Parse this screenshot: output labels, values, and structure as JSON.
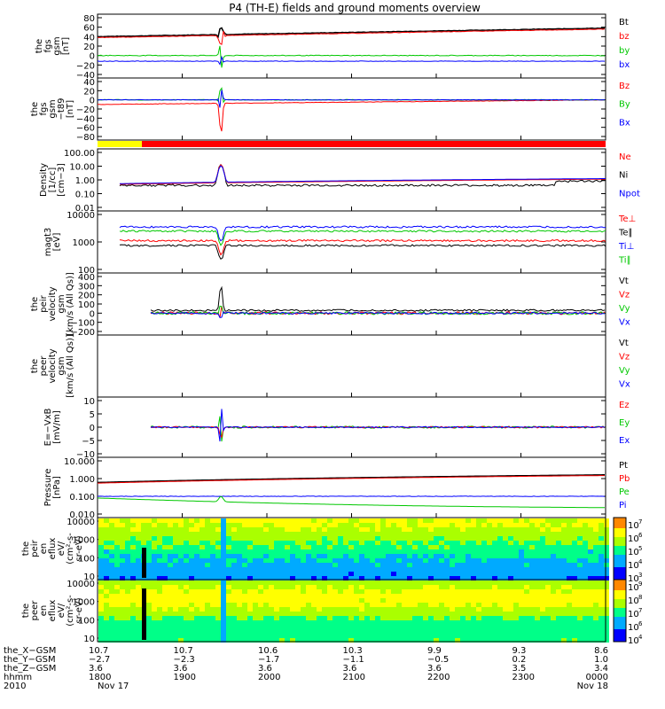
{
  "title": "P4 (TH-E) fields and ground moments overview",
  "colors": {
    "black": "#000000",
    "red": "#ff0000",
    "green": "#00c800",
    "blue": "#0000ff",
    "yellow": "#ffff00",
    "orange": "#ff6600"
  },
  "panels": [
    {
      "ylabel": [
        "the",
        "fgs",
        "gsm",
        "[nT]"
      ],
      "yticks": [
        "80",
        "60",
        "40",
        "20",
        "0",
        "−20",
        "−40"
      ],
      "legend": [
        {
          "t": "Bt",
          "c": "black"
        },
        {
          "t": "bz",
          "c": "red"
        },
        {
          "t": "by",
          "c": "green"
        },
        {
          "t": "bx",
          "c": "blue"
        }
      ]
    },
    {
      "ylabel": [
        "the",
        "fgs",
        "gsm",
        "−t89",
        "[nT]"
      ],
      "yticks": [
        "40",
        "20",
        "0",
        "−20",
        "−40",
        "−60",
        "−80"
      ],
      "legend": [
        {
          "t": "Bz",
          "c": "red"
        },
        {
          "t": "By",
          "c": "green"
        },
        {
          "t": "Bx",
          "c": "blue"
        }
      ]
    },
    {
      "ylabel": [
        "Density",
        "[1/cc]",
        "[cm−3]"
      ],
      "yticks": [
        "100.00",
        "10.00",
        "1.00",
        "0.10",
        "0.01"
      ],
      "legend": [
        {
          "t": "Ne",
          "c": "red"
        },
        {
          "t": "Ni",
          "c": "black"
        },
        {
          "t": "Npot",
          "c": "blue"
        }
      ]
    },
    {
      "ylabel": [
        "magt3",
        "[eV]"
      ],
      "yticks": [
        "10000",
        "1000",
        "100"
      ],
      "legend": [
        {
          "t": "Te⊥",
          "c": "red"
        },
        {
          "t": "Te∥",
          "c": "black"
        },
        {
          "t": "Ti⊥",
          "c": "blue"
        },
        {
          "t": "Ti∥",
          "c": "green"
        }
      ]
    },
    {
      "ylabel": [
        "the",
        "peir",
        "velocity",
        "gsm",
        "[km/s (All Qs)]"
      ],
      "yticks": [
        "400",
        "300",
        "200",
        "100",
        "0",
        "−100",
        "−200"
      ],
      "legend": [
        {
          "t": "Vt",
          "c": "black"
        },
        {
          "t": "Vz",
          "c": "red"
        },
        {
          "t": "Vy",
          "c": "green"
        },
        {
          "t": "Vx",
          "c": "blue"
        }
      ]
    },
    {
      "ylabel": [
        "the",
        "peer",
        "velocity",
        "gsm",
        "[km/s (All Qs)]"
      ],
      "yticks": [],
      "legend": [
        {
          "t": "Vt",
          "c": "black"
        },
        {
          "t": "Vz",
          "c": "red"
        },
        {
          "t": "Vy",
          "c": "green"
        },
        {
          "t": "Vx",
          "c": "blue"
        }
      ]
    },
    {
      "ylabel": [
        "E=−VxB",
        "[mV/m]"
      ],
      "yticks": [
        "10",
        "5",
        "0",
        "−5",
        "−10"
      ],
      "legend": [
        {
          "t": "Ez",
          "c": "red"
        },
        {
          "t": "Ey",
          "c": "green"
        },
        {
          "t": "Ex",
          "c": "blue"
        }
      ]
    },
    {
      "ylabel": [
        "Pressure",
        "[nPa]"
      ],
      "yticks": [
        "10.000",
        "1.000",
        "0.100",
        "0.010"
      ],
      "legend": [
        {
          "t": "Pt",
          "c": "black"
        },
        {
          "t": "Pb",
          "c": "red"
        },
        {
          "t": "Pe",
          "c": "green"
        },
        {
          "t": "Pi",
          "c": "blue"
        }
      ]
    },
    {
      "ylabel": [
        "the",
        "peir",
        "en",
        "eflux",
        "eV/",
        "(cm²-s-",
        "sr-eV)"
      ],
      "yticks": [
        "10000",
        "1000",
        "100",
        "10"
      ],
      "cbar": [
        "10",
        "10",
        "10",
        "10",
        "10"
      ],
      "cbar_exp": [
        "7",
        "6",
        "5",
        "4",
        "3"
      ]
    },
    {
      "ylabel": [
        "the",
        "peer",
        "en",
        "eflux",
        "eV/",
        "(cm²-s-",
        "sr-eV)"
      ],
      "yticks": [
        "10000",
        "1000",
        "100",
        "10"
      ],
      "cbar": [
        "10",
        "10",
        "10",
        "10",
        "10"
      ],
      "cbar_exp": [
        "9",
        "8",
        "7",
        "6",
        "4"
      ]
    }
  ],
  "xaxis": {
    "row_labels": [
      "the_X−GSM",
      "the_Y−GSM",
      "the_Z−GSM",
      "hhmm",
      "2010"
    ],
    "cols": [
      [
        "10.7",
        "−2.7",
        "3.6",
        "1800",
        "Nov 17"
      ],
      [
        "10.7",
        "−2.3",
        "3.6",
        "1900",
        ""
      ],
      [
        "10.6",
        "−1.7",
        "3.6",
        "2000",
        ""
      ],
      [
        "10.3",
        "−1.1",
        "3.6",
        "2100",
        ""
      ],
      [
        "9.9",
        "−0.5",
        "3.6",
        "2200",
        ""
      ],
      [
        "9.3",
        "0.2",
        "3.5",
        "2300",
        ""
      ],
      [
        "8.6",
        "1.0",
        "3.4",
        "0000",
        "Nov 18"
      ]
    ]
  },
  "chart_data": {
    "type": "line",
    "title": "P4 (TH-E) fields and ground moments overview",
    "x": [
      "1800",
      "1900",
      "2000",
      "2100",
      "2200",
      "2300",
      "0000"
    ],
    "series": [
      {
        "name": "Bt",
        "values": [
          40,
          40,
          42,
          43,
          45,
          48,
          60
        ]
      },
      {
        "name": "bz",
        "values": [
          38,
          38,
          40,
          41,
          43,
          46,
          58
        ]
      },
      {
        "name": "by",
        "values": [
          0,
          0,
          0,
          0,
          0,
          0,
          0
        ]
      },
      {
        "name": "bx",
        "values": [
          -12,
          -12,
          -12,
          -12,
          -12,
          -12,
          -10
        ]
      },
      {
        "name": "Ni",
        "values": [
          0.4,
          0.3,
          0.3,
          0.3,
          0.3,
          0.4,
          1.0
        ]
      },
      {
        "name": "Pb",
        "values": [
          0.6,
          0.7,
          0.7,
          0.8,
          0.9,
          1.1,
          1.6
        ]
      },
      {
        "name": "Pe",
        "values": [
          0.1,
          0.06,
          0.03,
          0.02,
          0.02,
          0.02,
          0.03
        ]
      }
    ]
  }
}
